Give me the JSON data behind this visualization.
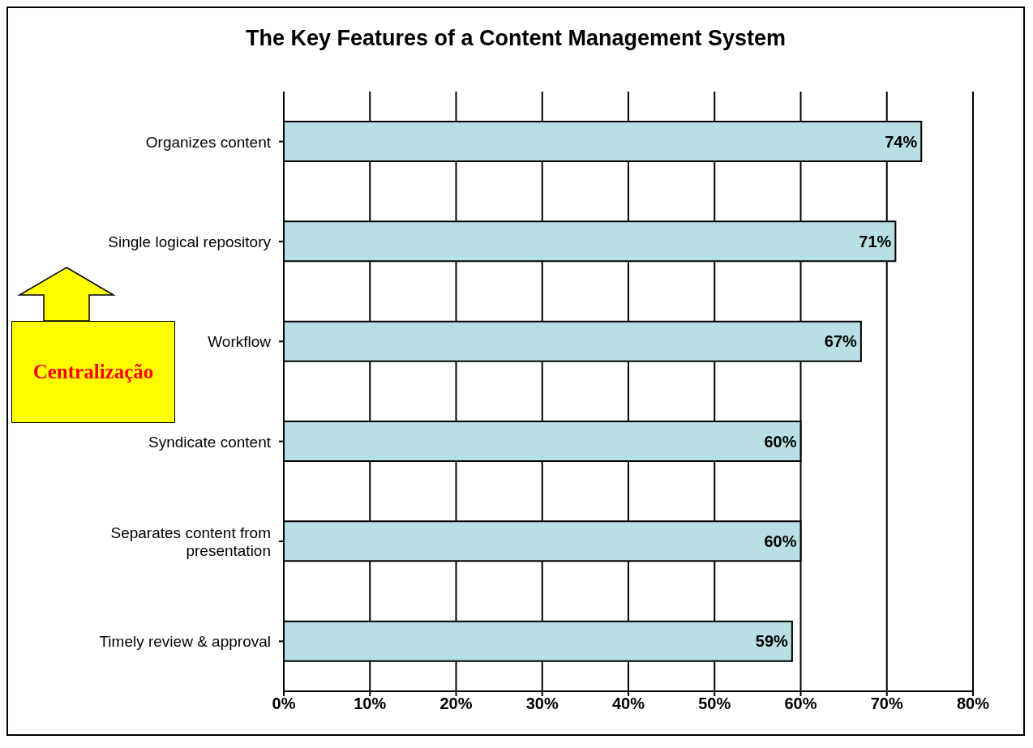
{
  "chart_data": {
    "type": "bar",
    "orientation": "horizontal",
    "title": "The Key Features of a Content Management System",
    "categories": [
      "Organizes content",
      "Single logical repository",
      "Workflow",
      "Syndicate content",
      "Separates content from presentation",
      "Timely review & approval"
    ],
    "values": [
      74,
      71,
      67,
      60,
      60,
      59
    ],
    "value_labels": [
      "74%",
      "71%",
      "67%",
      "60%",
      "60%",
      "59%"
    ],
    "color": "#b8e0e4",
    "xlim": [
      0,
      80
    ],
    "xticks": [
      {
        "value": 0,
        "label": "0%"
      },
      {
        "value": 10,
        "label": "10%"
      },
      {
        "value": 20,
        "label": "20%"
      },
      {
        "value": 30,
        "label": "30%"
      },
      {
        "value": 40,
        "label": "40%"
      },
      {
        "value": 50,
        "label": "50%"
      },
      {
        "value": 60,
        "label": "60%"
      },
      {
        "value": 70,
        "label": "70%"
      },
      {
        "value": 80,
        "label": "80%"
      }
    ],
    "grid": "x",
    "annotations": [
      "Centralização"
    ]
  }
}
